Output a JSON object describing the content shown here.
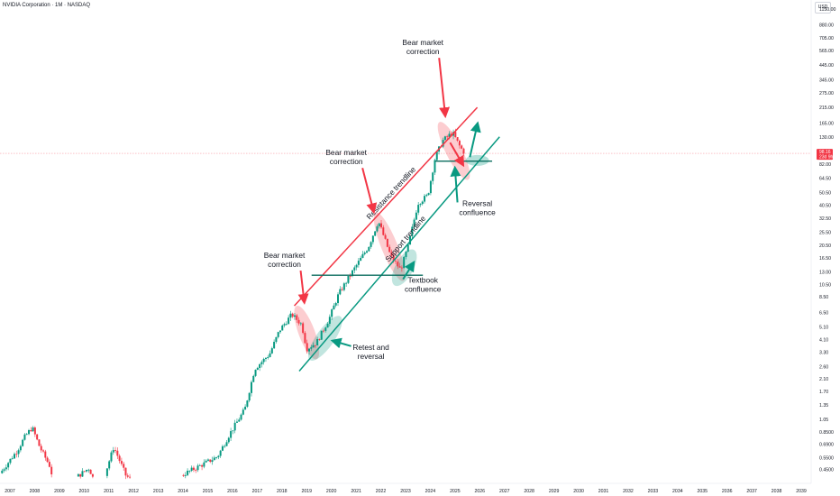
{
  "header": {
    "title": "NVIDIA Corporation · 1M · NASDAQ",
    "currency": "USD"
  },
  "price_tag": {
    "price": "98.16",
    "sub": "23d 9h",
    "color": "#f23645"
  },
  "colors": {
    "up": "#089981",
    "down": "#f23645",
    "resistance": "#f23645",
    "support": "#089981"
  },
  "chart_data": {
    "type": "candlestick",
    "title": "",
    "y_scale": "log",
    "ylim": [
      0.4,
      1150
    ],
    "xlim": [
      2006.6,
      2039.4
    ],
    "y_ticks": [
      "1150.00",
      "880.00",
      "705.00",
      "565.00",
      "445.00",
      "345.00",
      "275.00",
      "215.00",
      "165.00",
      "130.00",
      "82.00",
      "64.50",
      "50.50",
      "40.50",
      "32.50",
      "25.50",
      "20.50",
      "16.50",
      "13.00",
      "10.50",
      "8.50",
      "6.50",
      "5.10",
      "4.10",
      "3.30",
      "2.60",
      "2.10",
      "1.70",
      "1.35",
      "1.05",
      "0.8500",
      "0.6900",
      "0.5500",
      "0.4500"
    ],
    "x_ticks": [
      "2007",
      "2008",
      "2009",
      "2010",
      "2011",
      "2012",
      "2013",
      "2014",
      "2015",
      "2016",
      "2017",
      "2018",
      "2019",
      "2020",
      "2021",
      "2022",
      "2023",
      "2024",
      "2025",
      "2026",
      "2027",
      "2028",
      "2029",
      "2030",
      "2031",
      "2032",
      "2033",
      "2034",
      "2035",
      "2036",
      "2037",
      "2038",
      "2039"
    ],
    "resistance_line": {
      "label": "Resistance trendline",
      "from": [
        2018.5,
        7.3
      ],
      "to": [
        2025.9,
        215
      ]
    },
    "support_line": {
      "label": "Support trendline",
      "from": [
        2018.7,
        2.4
      ],
      "to": [
        2026.8,
        130
      ]
    },
    "horizontal_levels": [
      {
        "value": 12.3,
        "from": 2019.2,
        "to": 2023.7
      },
      {
        "value": 86,
        "from": 2024.2,
        "to": 2026.5
      }
    ],
    "annotations": [
      {
        "text": "Bear market correction",
        "x": 2023.7,
        "y": 620,
        "points_to": [
          2024.6,
          190
        ]
      },
      {
        "text": "Bear market correction",
        "x": 2020.6,
        "y": 95,
        "points_to": [
          2021.7,
          37
        ]
      },
      {
        "text": "Bear market correction",
        "x": 2018.1,
        "y": 16.5,
        "points_to": [
          2018.9,
          7.9
        ]
      },
      {
        "text": "Reversal confluence",
        "x": 2025.9,
        "y": 40,
        "points_to": [
          2025.0,
          75
        ]
      },
      {
        "text": "Textbook confluence",
        "x": 2023.7,
        "y": 10.8,
        "points_to": [
          2023.3,
          15
        ]
      },
      {
        "text": "Retest and reversal",
        "x": 2021.6,
        "y": 3.45,
        "points_to": [
          2020.1,
          4.0
        ]
      }
    ],
    "correction_zones": [
      {
        "from": [
          2018.7,
          6.5
        ],
        "to": [
          2019.3,
          3.3
        ],
        "color": "#f23645"
      },
      {
        "from": [
          2021.9,
          32
        ],
        "to": [
          2022.8,
          12.5
        ],
        "color": "#f23645"
      },
      {
        "from": [
          2024.5,
          150
        ],
        "to": [
          2025.4,
          70
        ],
        "color": "#f23645"
      }
    ],
    "confluence_zones": [
      {
        "from": [
          2019.3,
          3.2
        ],
        "to": [
          2020.2,
          5.5
        ],
        "color": "#089981"
      },
      {
        "from": [
          2022.7,
          11.5
        ],
        "to": [
          2023.2,
          17
        ],
        "color": "#089981"
      },
      {
        "x": 2025.9,
        "y": 87,
        "color": "#089981"
      }
    ],
    "trend_arrows": [
      {
        "from": [
          2025.6,
          92
        ],
        "to": [
          2025.9,
          160
        ],
        "color": "#089981"
      },
      {
        "from": [
          2024.8,
          118
        ],
        "to": [
          2025.3,
          82
        ],
        "color": "#f23645"
      }
    ],
    "series": {
      "name": "",
      "anchors": [
        [
          2006.6,
          0.42
        ],
        [
          2007.3,
          0.62
        ],
        [
          2007.6,
          0.78
        ],
        [
          2007.9,
          0.92
        ],
        [
          2008.2,
          0.66
        ],
        [
          2008.6,
          0.48
        ],
        [
          2008.9,
          0.3
        ],
        [
          2009.5,
          0.37
        ],
        [
          2010.2,
          0.46
        ],
        [
          2010.6,
          0.3
        ],
        [
          2011.2,
          0.66
        ],
        [
          2011.7,
          0.4
        ],
        [
          2012.5,
          0.33
        ],
        [
          2013.5,
          0.35
        ],
        [
          2014.1,
          0.42
        ],
        [
          2014.9,
          0.5
        ],
        [
          2015.4,
          0.56
        ],
        [
          2015.9,
          0.83
        ],
        [
          2016.5,
          1.25
        ],
        [
          2016.9,
          2.5
        ],
        [
          2017.5,
          3.2
        ],
        [
          2017.9,
          4.8
        ],
        [
          2018.4,
          6.3
        ],
        [
          2018.8,
          5.3
        ],
        [
          2019.0,
          3.5
        ],
        [
          2019.4,
          3.9
        ],
        [
          2019.9,
          5.8
        ],
        [
          2020.3,
          9.0
        ],
        [
          2020.9,
          13.5
        ],
        [
          2021.5,
          20
        ],
        [
          2021.9,
          31
        ],
        [
          2022.4,
          17
        ],
        [
          2022.8,
          13.5
        ],
        [
          2023.1,
          20
        ],
        [
          2023.5,
          42
        ],
        [
          2023.9,
          48
        ],
        [
          2024.2,
          92
        ],
        [
          2024.5,
          122
        ],
        [
          2024.9,
          140
        ],
        [
          2025.2,
          110
        ],
        [
          2025.4,
          98
        ]
      ]
    }
  }
}
